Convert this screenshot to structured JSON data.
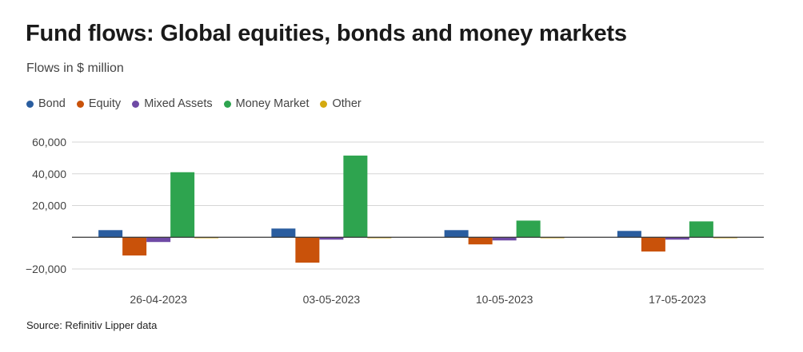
{
  "header": {
    "title": "Fund flows: Global equities, bonds and money markets",
    "subtitle": "Flows in $ million"
  },
  "footer": {
    "source": "Source: Refinitiv Lipper data"
  },
  "colors": {
    "Bond": "#2a5d9f",
    "Equity": "#c9520a",
    "Mixed Assets": "#6f4aa5",
    "Money Market": "#2ea44f",
    "Other": "#d4a90f"
  },
  "chart_data": {
    "type": "bar",
    "categories": [
      "26-04-2023",
      "03-05-2023",
      "10-05-2023",
      "17-05-2023"
    ],
    "series": [
      {
        "name": "Bond",
        "values": [
          4500,
          5500,
          4500,
          4000
        ]
      },
      {
        "name": "Equity",
        "values": [
          -11500,
          -16000,
          -4500,
          -9000
        ]
      },
      {
        "name": "Mixed Assets",
        "values": [
          -3000,
          -1500,
          -2000,
          -1500
        ]
      },
      {
        "name": "Money Market",
        "values": [
          41000,
          51500,
          10500,
          10000
        ]
      },
      {
        "name": "Other",
        "values": [
          -500,
          -500,
          -300,
          -300
        ]
      }
    ],
    "yticks": [
      -20000,
      20000,
      40000,
      60000
    ],
    "ytick_labels": [
      "−20,000",
      "20,000",
      "40,000",
      "60,000"
    ],
    "ylim": [
      -20000,
      60000
    ],
    "grid": true,
    "legend_position": "top-left"
  }
}
